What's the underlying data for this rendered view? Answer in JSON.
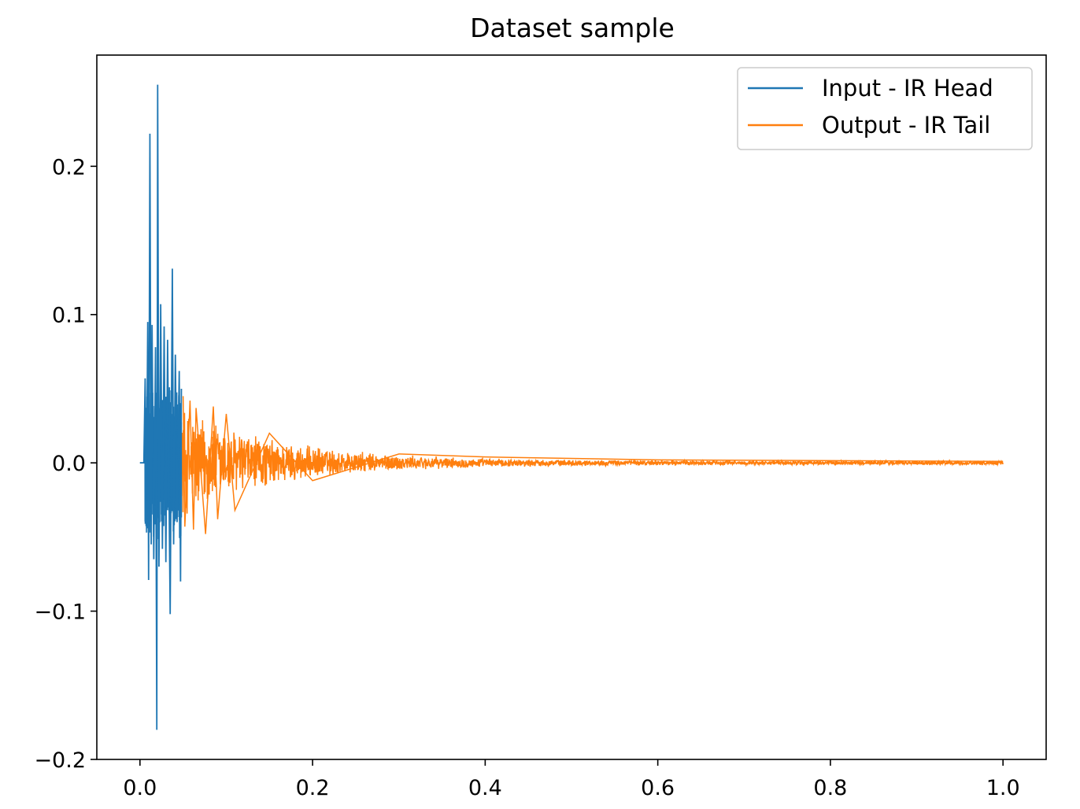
{
  "chart_data": {
    "type": "line",
    "title": "Dataset sample",
    "xlabel": "",
    "ylabel": "",
    "xlim": [
      -0.05,
      1.05
    ],
    "ylim": [
      -0.2,
      0.275
    ],
    "x_ticks": [
      "0.0",
      "0.2",
      "0.4",
      "0.6",
      "0.8",
      "1.0"
    ],
    "y_ticks": [
      "−0.2",
      "−0.1",
      "0.0",
      "0.1",
      "0.2"
    ],
    "x_tick_values": [
      0.0,
      0.2,
      0.4,
      0.6,
      0.8,
      1.0
    ],
    "y_tick_values": [
      -0.2,
      -0.1,
      0.0,
      0.1,
      0.2
    ],
    "grid": false,
    "legend_position": "top-right",
    "series": [
      {
        "name": "Input - IR Head",
        "color": "#1f77b4",
        "x_range": [
          0.0,
          0.048
        ],
        "points": [
          [
            0.0,
            0.0
          ],
          [
            0.0045,
            0.0
          ],
          [
            0.006,
            0.057
          ],
          [
            0.0075,
            -0.025
          ],
          [
            0.009,
            0.095
          ],
          [
            0.01,
            -0.079
          ],
          [
            0.0115,
            0.222
          ],
          [
            0.013,
            -0.055
          ],
          [
            0.014,
            0.093
          ],
          [
            0.016,
            -0.065
          ],
          [
            0.018,
            0.078
          ],
          [
            0.0195,
            -0.18
          ],
          [
            0.0205,
            0.255
          ],
          [
            0.022,
            -0.07
          ],
          [
            0.024,
            0.107
          ],
          [
            0.026,
            -0.058
          ],
          [
            0.028,
            0.092
          ],
          [
            0.03,
            -0.067
          ],
          [
            0.032,
            0.083
          ],
          [
            0.035,
            -0.102
          ],
          [
            0.0375,
            0.131
          ],
          [
            0.039,
            -0.055
          ],
          [
            0.041,
            0.073
          ],
          [
            0.043,
            -0.04
          ],
          [
            0.0455,
            0.062
          ],
          [
            0.047,
            -0.08
          ],
          [
            0.048,
            0.05
          ]
        ],
        "envelope_peak": 0.055
      },
      {
        "name": "Output - IR Tail",
        "color": "#ff7f0e",
        "x_range": [
          0.048,
          1.0
        ],
        "points": [
          [
            0.05,
            0.045
          ],
          [
            0.052,
            -0.043
          ],
          [
            0.058,
            0.042
          ],
          [
            0.062,
            -0.045
          ],
          [
            0.065,
            0.037
          ],
          [
            0.076,
            -0.048
          ],
          [
            0.085,
            0.038
          ],
          [
            0.09,
            -0.038
          ],
          [
            0.1,
            0.033
          ],
          [
            0.11,
            -0.032
          ],
          [
            0.15,
            0.02
          ],
          [
            0.2,
            -0.012
          ],
          [
            0.3,
            0.006
          ],
          [
            0.4,
            0.004
          ],
          [
            0.6,
            0.002
          ],
          [
            1.0,
            0.001
          ]
        ],
        "envelope_peak": 0.04,
        "envelope_decay": 9.0
      }
    ]
  }
}
